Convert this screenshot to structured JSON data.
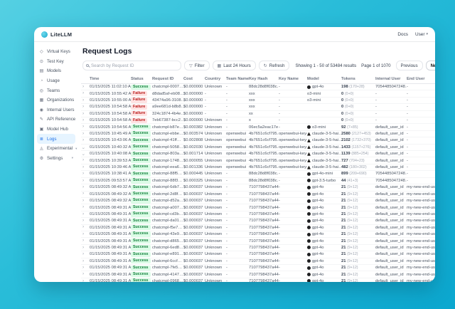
{
  "topbar": {
    "brand": "LiteLLM",
    "docs_label": "Docs",
    "user_label": "User"
  },
  "sidebar": {
    "items": [
      {
        "id": "virtual-keys",
        "label": "Virtual Keys",
        "icon": "key-icon",
        "active": false,
        "expandable": false
      },
      {
        "id": "test-key",
        "label": "Test Key",
        "icon": "test-key-icon",
        "active": false,
        "expandable": false
      },
      {
        "id": "models",
        "label": "Models",
        "icon": "models-icon",
        "active": false,
        "expandable": false
      },
      {
        "id": "usage",
        "label": "Usage",
        "icon": "usage-chart-icon",
        "active": false,
        "expandable": false
      },
      {
        "id": "teams",
        "label": "Teams",
        "icon": "teams-icon",
        "active": false,
        "expandable": false
      },
      {
        "id": "organizations",
        "label": "Organizations",
        "icon": "organizations-icon",
        "active": false,
        "expandable": false
      },
      {
        "id": "internal-users",
        "label": "Internal Users",
        "icon": "users-icon",
        "active": false,
        "expandable": false
      },
      {
        "id": "api-reference",
        "label": "API Reference",
        "icon": "api-reference-icon",
        "active": false,
        "expandable": false
      },
      {
        "id": "model-hub",
        "label": "Model Hub",
        "icon": "model-hub-icon",
        "active": false,
        "expandable": false
      },
      {
        "id": "logs",
        "label": "Logs",
        "icon": "logs-icon",
        "active": true,
        "expandable": false
      },
      {
        "id": "experimental",
        "label": "Experimental",
        "icon": "experimental-icon",
        "active": false,
        "expandable": true
      },
      {
        "id": "settings",
        "label": "Settings",
        "icon": "gear-icon",
        "active": false,
        "expandable": true
      }
    ]
  },
  "main": {
    "title": "Request Logs",
    "toolbar": {
      "search_placeholder": "Search by Request ID",
      "filter_label": "Filter",
      "range_label": "Last 24 Hours",
      "refresh_label": "Refresh"
    },
    "pagination": {
      "summary": "Showing 1 - 50 of 53484 results",
      "page": "Page 1 of 1070",
      "prev_label": "Previous",
      "next_label": "Next"
    },
    "table": {
      "columns": [
        "",
        "Time",
        "Status",
        "Request ID",
        "Cost",
        "Country",
        "Team Name",
        "Key Hash",
        "Key Name",
        "Model",
        "Tokens",
        "Internal User",
        "End User"
      ],
      "rows": [
        {
          "expanded": false,
          "time": "01/15/2025 11:02:10 AM",
          "status": "Success",
          "request_id": "chatcmpl-0007…",
          "cost": "$0.000000",
          "country": "Unknown",
          "team": "-",
          "key_hash": "88dc28d8f038c…",
          "key_name": "-",
          "provider": "openai",
          "model": "gpt-4o",
          "tokens": "198",
          "tokens_detail": "(170+28)",
          "internal_user": "7054485047248…",
          "end_user": "-"
        },
        {
          "expanded": false,
          "time": "01/15/2025 10:55:42 AM",
          "status": "Failure",
          "request_id": "d8dad5af-eb08…",
          "cost": "$0.000000",
          "country": "-",
          "team": "-",
          "key_hash": "xxx",
          "key_name": "-",
          "provider": "none",
          "model": "o3-mini",
          "tokens": "0",
          "tokens_detail": "(0+0)",
          "internal_user": "-",
          "end_user": "-"
        },
        {
          "expanded": false,
          "time": "01/15/2025 10:55:00 AM",
          "status": "Failure",
          "request_id": "43474a96-3108…",
          "cost": "$0.000000",
          "country": "-",
          "team": "-",
          "key_hash": "xxx",
          "key_name": "-",
          "provider": "none",
          "model": "o3-mini",
          "tokens": "0",
          "tokens_detail": "(0+0)",
          "internal_user": "-",
          "end_user": "-"
        },
        {
          "expanded": false,
          "time": "01/15/2025 10:54:58 AM",
          "status": "Failure",
          "request_id": "a9ee681d-b8b8…",
          "cost": "$0.000000",
          "country": "-",
          "team": "-",
          "key_hash": "xxx",
          "key_name": "-",
          "provider": "none",
          "model": "",
          "tokens": "0",
          "tokens_detail": "(0+0)",
          "internal_user": "-",
          "end_user": "-"
        },
        {
          "expanded": false,
          "time": "01/15/2025 10:54:58 AM",
          "status": "Failure",
          "request_id": "324c1874-4b4e…",
          "cost": "$0.000000",
          "country": "-",
          "team": "-",
          "key_hash": "xx",
          "key_name": "-",
          "provider": "none",
          "model": "",
          "tokens": "0",
          "tokens_detail": "(0+0)",
          "internal_user": "-",
          "end_user": "-"
        },
        {
          "expanded": false,
          "time": "01/15/2025 10:54:58 AM",
          "status": "Failure",
          "request_id": "7eb67387-bcc2…",
          "cost": "$0.000000",
          "country": "Unknown",
          "team": "-",
          "key_hash": "x",
          "key_name": "-",
          "provider": "none",
          "model": "",
          "tokens": "0",
          "tokens_detail": "(0+0)",
          "internal_user": "-",
          "end_user": "-"
        },
        {
          "expanded": false,
          "time": "01/15/2025 10:54:56 AM",
          "status": "Success",
          "request_id": "chatcmpl-b87e…",
          "cost": "$0.000382",
          "country": "Unknown",
          "team": "-",
          "key_hash": "06ec5a2eac17e…",
          "key_name": "-",
          "provider": "openai",
          "model": "o3-mini",
          "tokens": "92",
          "tokens_detail": "(7+85)",
          "internal_user": "default_user_id",
          "end_user": "-"
        },
        {
          "expanded": false,
          "time": "01/15/2025 10:45:49 AM",
          "status": "Success",
          "request_id": "chatcmpl-ebbe…",
          "cost": "$0.003574",
          "country": "Unknown",
          "team": "openwebui",
          "key_hash": "4b7651c6cf795…",
          "key_name": "openwebui-key-2",
          "provider": "anthropic",
          "model": "claude-3-5-hai…",
          "tokens": "2580",
          "tokens_detail": "(2127+453)",
          "internal_user": "default_user_id",
          "end_user": "-"
        },
        {
          "expanded": false,
          "time": "01/15/2025 10:43:06 AM",
          "status": "Success",
          "request_id": "chatcmpl-41ff…",
          "cost": "$0.002808",
          "country": "Unknown",
          "team": "openwebui",
          "key_hash": "4b7651c6cf795…",
          "key_name": "openwebui-key-2",
          "provider": "anthropic",
          "model": "claude-3-5-hai…",
          "tokens": "2102",
          "tokens_detail": "(1732+370)",
          "internal_user": "default_user_id",
          "end_user": "-"
        },
        {
          "expanded": true,
          "time": "01/15/2025 10:40:32 AM",
          "status": "Success",
          "request_id": "chatcmpl-5058…",
          "cost": "$0.002030",
          "country": "Unknown",
          "team": "openwebui",
          "key_hash": "4b7651c6cf795…",
          "key_name": "openwebui-key-2",
          "provider": "anthropic",
          "model": "claude-3-5-hai…",
          "tokens": "1433",
          "tokens_detail": "(1157+276)",
          "internal_user": "default_user_id",
          "end_user": "-"
        },
        {
          "expanded": true,
          "time": "01/15/2025 10:40:08 AM",
          "status": "Success",
          "request_id": "chatcmpl-803a…",
          "cost": "$0.001714",
          "country": "Unknown",
          "team": "openwebui",
          "key_hash": "4b7651c6cf795…",
          "key_name": "openwebui-key-2",
          "provider": "anthropic",
          "model": "claude-3-5-hai…",
          "tokens": "1139",
          "tokens_detail": "(885+254)",
          "internal_user": "default_user_id",
          "end_user": "-"
        },
        {
          "expanded": false,
          "time": "01/15/2025 10:39:53 AM",
          "status": "Success",
          "request_id": "chatcmpl-1748…",
          "cost": "$0.000055",
          "country": "Unknown",
          "team": "openwebui",
          "key_hash": "4b7651c6cf795…",
          "key_name": "openwebui-key-2",
          "provider": "anthropic",
          "model": "claude-3-5-hai…",
          "tokens": "727",
          "tokens_detail": "(704+23)",
          "internal_user": "default_user_id",
          "end_user": "-"
        },
        {
          "expanded": false,
          "time": "01/15/2025 10:39:46 AM",
          "status": "Success",
          "request_id": "chatcmpl-eea6…",
          "cost": "$0.001336",
          "country": "Unknown",
          "team": "openwebui",
          "key_hash": "4b7651c6cf795…",
          "key_name": "openwebui-key-2",
          "provider": "anthropic",
          "model": "claude-3-5-hai…",
          "tokens": "482",
          "tokens_detail": "(180+302)",
          "internal_user": "default_user_id",
          "end_user": "-"
        },
        {
          "expanded": false,
          "time": "01/15/2025 10:38:41 AM",
          "status": "Success",
          "request_id": "chatcmpl-88f5…",
          "cost": "$0.000445",
          "country": "Unknown",
          "team": "-",
          "key_hash": "88dc28d8f038c…",
          "key_name": "-",
          "provider": "openai",
          "model": "gpt-4o-mini",
          "tokens": "899",
          "tokens_detail": "(209+690)",
          "internal_user": "7054485047248…",
          "end_user": "-"
        },
        {
          "expanded": false,
          "time": "01/15/2025 09:53:57 AM",
          "status": "Success",
          "request_id": "chatcmpl-88f3…",
          "cost": "$0.000325",
          "country": "Unknown",
          "team": "-",
          "key_hash": "88dc28d8f038c…",
          "key_name": "-",
          "provider": "openai",
          "model": "gpt-3.5-turbo",
          "tokens": "44",
          "tokens_detail": "(41+3)",
          "internal_user": "7054485047248…",
          "end_user": "-"
        },
        {
          "expanded": false,
          "time": "01/15/2025 08:49:32 AM",
          "status": "Success",
          "request_id": "chatcmpl-6db7…",
          "cost": "$0.000037",
          "country": "Unknown",
          "team": "-",
          "key_hash": "7107798437a44…",
          "key_name": "-",
          "provider": "openai",
          "model": "gpt-4o",
          "tokens": "21",
          "tokens_detail": "(9+12)",
          "internal_user": "default_user_id",
          "end_user": "my-new-end-user-1"
        },
        {
          "expanded": false,
          "time": "01/15/2025 08:49:32 AM",
          "status": "Success",
          "request_id": "chatcmpl-2d8f…",
          "cost": "$0.000037",
          "country": "Unknown",
          "team": "-",
          "key_hash": "7107798437a44…",
          "key_name": "-",
          "provider": "openai",
          "model": "gpt-4o",
          "tokens": "21",
          "tokens_detail": "(9+12)",
          "internal_user": "default_user_id",
          "end_user": "my-new-end-user-1"
        },
        {
          "expanded": false,
          "time": "01/15/2025 08:49:32 AM",
          "status": "Success",
          "request_id": "chatcmpl-d52a…",
          "cost": "$0.000037",
          "country": "Unknown",
          "team": "-",
          "key_hash": "7107798437a44…",
          "key_name": "-",
          "provider": "openai",
          "model": "gpt-4o",
          "tokens": "21",
          "tokens_detail": "(9+12)",
          "internal_user": "default_user_id",
          "end_user": "my-new-end-user-1"
        },
        {
          "expanded": false,
          "time": "01/15/2025 08:49:31 AM",
          "status": "Success",
          "request_id": "chatcmpl-a007…",
          "cost": "$0.000037",
          "country": "Unknown",
          "team": "-",
          "key_hash": "7107798437a44…",
          "key_name": "-",
          "provider": "openai",
          "model": "gpt-4o",
          "tokens": "21",
          "tokens_detail": "(9+12)",
          "internal_user": "default_user_id",
          "end_user": "my-new-end-user-1"
        },
        {
          "expanded": false,
          "time": "01/15/2025 08:49:31 AM",
          "status": "Success",
          "request_id": "chatcmpl-cd3b…",
          "cost": "$0.000037",
          "country": "Unknown",
          "team": "-",
          "key_hash": "7107798437a44…",
          "key_name": "-",
          "provider": "openai",
          "model": "gpt-4o",
          "tokens": "21",
          "tokens_detail": "(9+12)",
          "internal_user": "default_user_id",
          "end_user": "my-new-end-user-1"
        },
        {
          "expanded": false,
          "time": "01/15/2025 08:49:31 AM",
          "status": "Success",
          "request_id": "chatcmpl-da01…",
          "cost": "$0.000037",
          "country": "Unknown",
          "team": "-",
          "key_hash": "7107798437a44…",
          "key_name": "-",
          "provider": "openai",
          "model": "gpt-4o",
          "tokens": "21",
          "tokens_detail": "(9+12)",
          "internal_user": "default_user_id",
          "end_user": "my-new-end-user-1"
        },
        {
          "expanded": false,
          "time": "01/15/2025 08:49:31 AM",
          "status": "Success",
          "request_id": "chatcmpl-f5e7…",
          "cost": "$0.000037",
          "country": "Unknown",
          "team": "-",
          "key_hash": "7107798437a44…",
          "key_name": "-",
          "provider": "openai",
          "model": "gpt-4o",
          "tokens": "21",
          "tokens_detail": "(9+12)",
          "internal_user": "default_user_id",
          "end_user": "my-new-end-user-1"
        },
        {
          "expanded": false,
          "time": "01/15/2025 08:49:31 AM",
          "status": "Success",
          "request_id": "chatcmpl-43e9…",
          "cost": "$0.000037",
          "country": "Unknown",
          "team": "-",
          "key_hash": "7107798437a44…",
          "key_name": "-",
          "provider": "openai",
          "model": "gpt-4o",
          "tokens": "21",
          "tokens_detail": "(9+12)",
          "internal_user": "default_user_id",
          "end_user": "my-new-end-user-1"
        },
        {
          "expanded": false,
          "time": "01/15/2025 08:49:31 AM",
          "status": "Success",
          "request_id": "chatcmpl-d865…",
          "cost": "$0.000037",
          "country": "Unknown",
          "team": "-",
          "key_hash": "7107798437a44…",
          "key_name": "-",
          "provider": "openai",
          "model": "gpt-4o",
          "tokens": "21",
          "tokens_detail": "(9+12)",
          "internal_user": "default_user_id",
          "end_user": "my-new-end-user-1"
        },
        {
          "expanded": false,
          "time": "01/15/2025 08:49:31 AM",
          "status": "Success",
          "request_id": "chatcmpl-6ed8…",
          "cost": "$0.000037",
          "country": "Unknown",
          "team": "-",
          "key_hash": "7107798437a44…",
          "key_name": "-",
          "provider": "openai",
          "model": "gpt-4o",
          "tokens": "21",
          "tokens_detail": "(9+12)",
          "internal_user": "default_user_id",
          "end_user": "my-new-end-user-1"
        },
        {
          "expanded": false,
          "time": "01/15/2025 08:49:31 AM",
          "status": "Success",
          "request_id": "chatcmpl-e891…",
          "cost": "$0.000037",
          "country": "Unknown",
          "team": "-",
          "key_hash": "7107798437a44…",
          "key_name": "-",
          "provider": "openai",
          "model": "gpt-4o",
          "tokens": "21",
          "tokens_detail": "(9+12)",
          "internal_user": "default_user_id",
          "end_user": "my-new-end-user-1"
        },
        {
          "expanded": false,
          "time": "01/15/2025 08:49:31 AM",
          "status": "Success",
          "request_id": "chatcmpl-6ccf…",
          "cost": "$0.000037",
          "country": "Unknown",
          "team": "-",
          "key_hash": "7107798437a44…",
          "key_name": "-",
          "provider": "openai",
          "model": "gpt-4o",
          "tokens": "21",
          "tokens_detail": "(9+12)",
          "internal_user": "default_user_id",
          "end_user": "my-new-end-user-1"
        },
        {
          "expanded": false,
          "time": "01/15/2025 08:49:31 AM",
          "status": "Success",
          "request_id": "chatcmpl-7fe5…",
          "cost": "$0.000037",
          "country": "Unknown",
          "team": "-",
          "key_hash": "7107798437a44…",
          "key_name": "-",
          "provider": "openai",
          "model": "gpt-4o",
          "tokens": "21",
          "tokens_detail": "(9+12)",
          "internal_user": "default_user_id",
          "end_user": "my-new-end-user-1"
        },
        {
          "expanded": false,
          "time": "01/15/2025 08:49:31 AM",
          "status": "Success",
          "request_id": "chatcmpl-4147…",
          "cost": "$0.000037",
          "country": "Unknown",
          "team": "-",
          "key_hash": "7107798437a44…",
          "key_name": "-",
          "provider": "openai",
          "model": "gpt-4o",
          "tokens": "21",
          "tokens_detail": "(9+12)",
          "internal_user": "default_user_id",
          "end_user": "my-new-end-user-1"
        },
        {
          "expanded": false,
          "time": "01/15/2025 08:49:31 AM",
          "status": "Success",
          "request_id": "chatcmpl-0968…",
          "cost": "$0.000037",
          "country": "Unknown",
          "team": "-",
          "key_hash": "7107798437a44…",
          "key_name": "-",
          "provider": "openai",
          "model": "gpt-4o",
          "tokens": "21",
          "tokens_detail": "(9+12)",
          "internal_user": "default_user_id",
          "end_user": "my-new-end-user-1"
        },
        {
          "expanded": false,
          "time": "01/15/2025 08:49:31 AM",
          "status": "Success",
          "request_id": "chatcmpl-a313…",
          "cost": "$0.000037",
          "country": "Unknown",
          "team": "-",
          "key_hash": "7107798437a44…",
          "key_name": "-",
          "provider": "openai",
          "model": "gpt-4o",
          "tokens": "21",
          "tokens_detail": "(9+12)",
          "internal_user": "default_user_id",
          "end_user": "my-new-end-user-1"
        }
      ]
    }
  },
  "colors": {
    "accent_blue": "#1c6fe8",
    "sidebar_active_bg": "#e6f4ff",
    "success_text": "#15803d",
    "success_bg": "#dcfce7",
    "failure_text": "#b91c1c",
    "failure_bg": "#fee2e2",
    "background_teal": "#2abdd9"
  }
}
